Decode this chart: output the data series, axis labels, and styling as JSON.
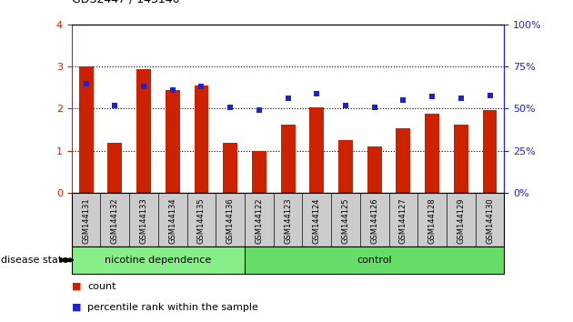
{
  "categories": [
    "GSM144131",
    "GSM144132",
    "GSM144133",
    "GSM144134",
    "GSM144135",
    "GSM144136",
    "GSM144122",
    "GSM144123",
    "GSM144124",
    "GSM144125",
    "GSM144126",
    "GSM144127",
    "GSM144128",
    "GSM144129",
    "GSM144130"
  ],
  "bar_values": [
    3.0,
    1.2,
    2.93,
    2.45,
    2.55,
    1.2,
    1.0,
    1.63,
    2.03,
    1.25,
    1.1,
    1.53,
    1.88,
    1.63,
    1.97
  ],
  "dot_values": [
    65,
    52,
    63,
    61,
    63,
    51,
    49,
    56,
    59,
    52,
    51,
    55,
    57,
    56,
    58
  ],
  "nicotine_count": 6,
  "control_count": 9,
  "bar_color": "#cc2200",
  "dot_color": "#2222cc",
  "nicotine_bg": "#88ee88",
  "control_bg": "#66dd66",
  "tick_label_bg": "#cccccc",
  "ylim_left": [
    0,
    4
  ],
  "ylim_right": [
    0,
    100
  ],
  "yticks_left": [
    0,
    1,
    2,
    3,
    4
  ],
  "yticks_right": [
    0,
    25,
    50,
    75,
    100
  ],
  "disease_state_label": "disease state",
  "nicotine_label": "nicotine dependence",
  "control_label": "control",
  "legend_count": "count",
  "legend_percentile": "percentile rank within the sample",
  "bar_width": 0.5
}
